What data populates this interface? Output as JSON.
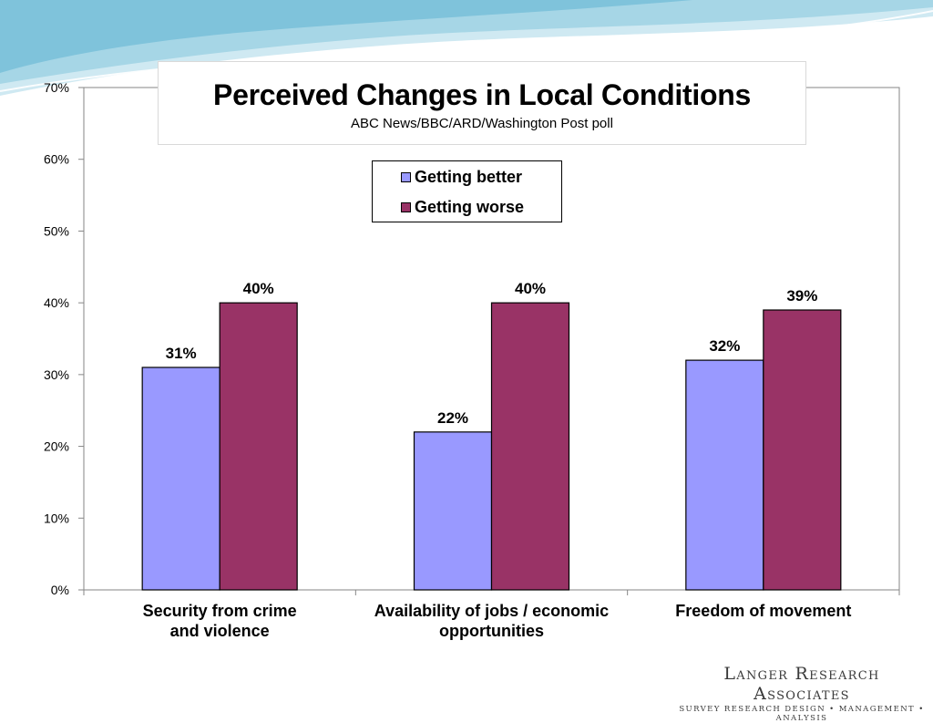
{
  "chart_data": {
    "type": "bar",
    "title": "Perceived Changes in Local Conditions",
    "subtitle": "ABC News/BBC/ARD/Washington Post poll",
    "categories": [
      "Security from crime and violence",
      "Availability of jobs / economic opportunities",
      "Freedom of movement"
    ],
    "category_lines": [
      [
        "Security from crime",
        "and violence"
      ],
      [
        "Availability of jobs / economic",
        "opportunities"
      ],
      [
        "Freedom of movement"
      ]
    ],
    "series": [
      {
        "name": "Getting better",
        "color": "#9999ff",
        "values": [
          31,
          22,
          32
        ],
        "labels": [
          "31%",
          "22%",
          "32%"
        ]
      },
      {
        "name": "Getting worse",
        "color": "#993366",
        "values": [
          40,
          40,
          39
        ],
        "labels": [
          "40%",
          "40%",
          "39%"
        ]
      }
    ],
    "ylim": [
      0,
      70
    ],
    "yticks": [
      0,
      10,
      20,
      30,
      40,
      50,
      60,
      70
    ],
    "ytick_labels": [
      "0%",
      "10%",
      "20%",
      "30%",
      "40%",
      "50%",
      "60%",
      "70%"
    ],
    "xlabel": "",
    "ylabel": "",
    "legend_position": "top-center"
  },
  "branding": {
    "name": "Langer Research Associates",
    "tagline": "SURVEY RESEARCH DESIGN • MANAGEMENT • ANALYSIS"
  },
  "colors": {
    "swoosh_light": "#cfe9f2",
    "swoosh_mid": "#9fd3e4",
    "swoosh_dark": "#66b8d2"
  }
}
